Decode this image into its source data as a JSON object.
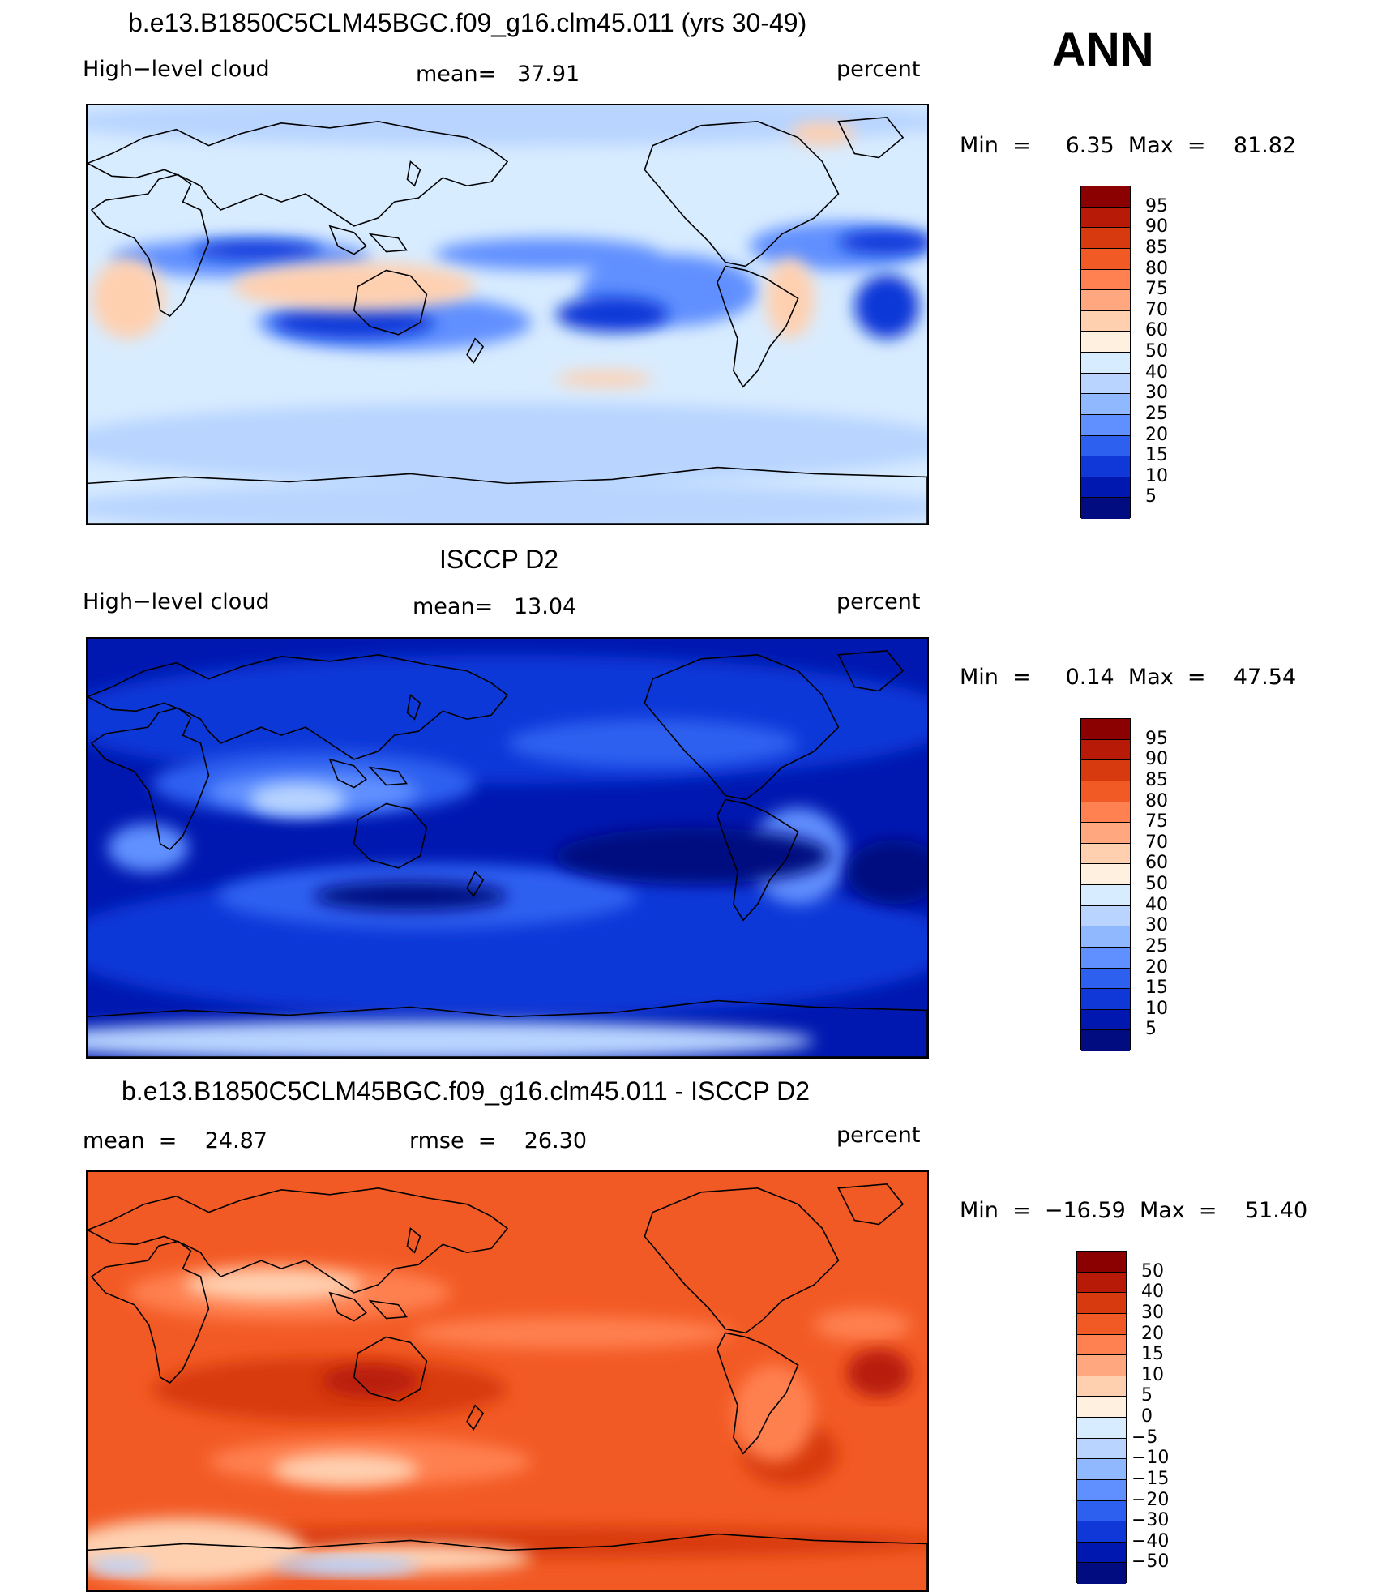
{
  "season": "ANN",
  "panels": [
    {
      "title": "b.e13.B1850C5CLM45BGC.f09_g16.clm45.011 (yrs 30-49)",
      "left_label": "High−level cloud",
      "center_label": "mean=   37.91",
      "units": "percent",
      "minmax": "Min  =     6.35  Max  =    81.82",
      "colorbar": {
        "labels": [
          "95",
          "90",
          "85",
          "80",
          "75",
          "70",
          "60",
          "50",
          "40",
          "30",
          "25",
          "20",
          "15",
          "10",
          "5"
        ],
        "colors": [
          "#8b0000",
          "#b81a08",
          "#d83a10",
          "#f25a25",
          "#ff8050",
          "#ffa880",
          "#ffd0b0",
          "#fff0e0",
          "#d8ecff",
          "#b8d4ff",
          "#90b8ff",
          "#6090ff",
          "#2e60f0",
          "#1038d8",
          "#0018b0",
          "#000c80"
        ]
      },
      "map_style": "model"
    },
    {
      "title": "ISCCP D2",
      "left_label": "High−level cloud",
      "center_label": "mean=   13.04",
      "units": "percent",
      "minmax": "Min  =     0.14  Max  =    47.54",
      "colorbar": {
        "labels": [
          "95",
          "90",
          "85",
          "80",
          "75",
          "70",
          "60",
          "50",
          "40",
          "30",
          "25",
          "20",
          "15",
          "10",
          "5"
        ],
        "colors": [
          "#8b0000",
          "#b81a08",
          "#d83a10",
          "#f25a25",
          "#ff8050",
          "#ffa880",
          "#ffd0b0",
          "#fff0e0",
          "#d8ecff",
          "#b8d4ff",
          "#90b8ff",
          "#6090ff",
          "#2e60f0",
          "#1038d8",
          "#0018b0",
          "#000c80"
        ]
      },
      "map_style": "obs"
    },
    {
      "title": "b.e13.B1850C5CLM45BGC.f09_g16.clm45.011 - ISCCP D2",
      "left_label": "mean  =    24.87",
      "center_label": "rmse  =    26.30",
      "units": "percent",
      "minmax": "Min  =  −16.59  Max  =    51.40",
      "colorbar": {
        "labels": [
          "50",
          "40",
          "30",
          "20",
          "15",
          "10",
          "5",
          "0",
          "−5",
          "−10",
          "−15",
          "−20",
          "−30",
          "−40",
          "−50"
        ],
        "colors": [
          "#8b0000",
          "#b81a08",
          "#d83a10",
          "#f25a25",
          "#ff8050",
          "#ffa880",
          "#ffd0b0",
          "#fff0e0",
          "#d8ecff",
          "#b8d4ff",
          "#90b8ff",
          "#6090ff",
          "#2e60f0",
          "#1038d8",
          "#0018b0",
          "#000c80"
        ]
      },
      "map_style": "diff"
    }
  ]
}
